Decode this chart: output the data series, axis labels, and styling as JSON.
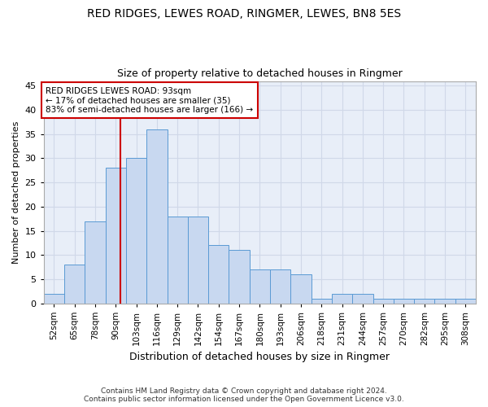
{
  "title1": "RED RIDGES, LEWES ROAD, RINGMER, LEWES, BN8 5ES",
  "title2": "Size of property relative to detached houses in Ringmer",
  "xlabel": "Distribution of detached houses by size in Ringmer",
  "ylabel": "Number of detached properties",
  "categories": [
    "52sqm",
    "65sqm",
    "78sqm",
    "90sqm",
    "103sqm",
    "116sqm",
    "129sqm",
    "142sqm",
    "154sqm",
    "167sqm",
    "180sqm",
    "193sqm",
    "206sqm",
    "218sqm",
    "231sqm",
    "244sqm",
    "257sqm",
    "270sqm",
    "282sqm",
    "295sqm",
    "308sqm"
  ],
  "values": [
    2,
    8,
    17,
    28,
    30,
    36,
    18,
    18,
    12,
    11,
    7,
    7,
    6,
    1,
    2,
    2,
    1,
    1,
    1,
    1,
    1
  ],
  "bar_color": "#c8d8f0",
  "bar_edge_color": "#5a9ad4",
  "grid_color": "#d0d8e8",
  "background_color": "#e8eef8",
  "vline_color": "#cc0000",
  "vline_x": 3.23,
  "annotation_title": "RED RIDGES LEWES ROAD: 93sqm",
  "annotation_line2": "← 17% of detached houses are smaller (35)",
  "annotation_line3": "83% of semi-detached houses are larger (166) →",
  "annotation_box_color": "#cc0000",
  "ylim": [
    0,
    46
  ],
  "yticks": [
    0,
    5,
    10,
    15,
    20,
    25,
    30,
    35,
    40,
    45
  ],
  "footer1": "Contains HM Land Registry data © Crown copyright and database right 2024.",
  "footer2": "Contains public sector information licensed under the Open Government Licence v3.0."
}
